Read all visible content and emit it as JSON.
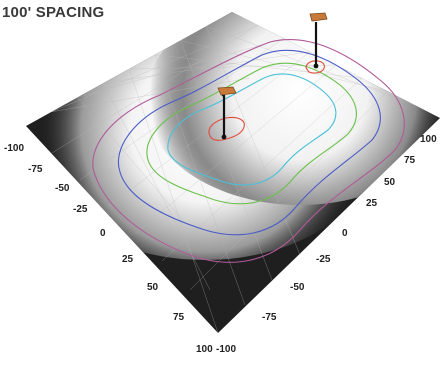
{
  "title": "100' SPACING",
  "left_axis_ticks": [
    "-100",
    "-75",
    "-50",
    "-25",
    "0",
    "25",
    "50",
    "75",
    "100"
  ],
  "right_axis_ticks": [
    "-100",
    "-75",
    "-50",
    "-25",
    "0",
    "25",
    "50",
    "75",
    "100"
  ],
  "poles": [
    {
      "name": "left-pole"
    },
    {
      "name": "right-pole"
    }
  ],
  "colors": {
    "surface_dark": "#1a1a1a",
    "surface_bright": "#ffffff",
    "contour_outer": "#b05a9a",
    "contour_blue": "#4a5cc8",
    "contour_green": "#6ac04a",
    "contour_cyan": "#48c0d8",
    "contour_red": "#e04a3a",
    "pole_head": "#c87a3a"
  }
}
